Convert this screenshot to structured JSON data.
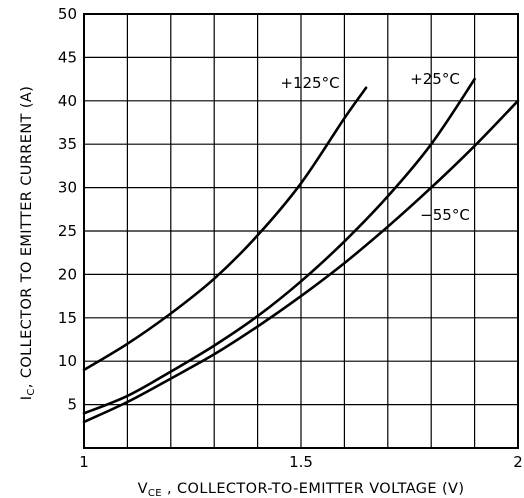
{
  "chart_data": {
    "type": "line",
    "xlabel": {
      "prefix": "V",
      "sub": "CE",
      "text": " , COLLECTOR-TO-EMITTER VOLTAGE (V)"
    },
    "ylabel": {
      "prefix": "I",
      "sub": "C",
      "text": ", COLLECTOR TO EMITTER CURRENT (A)"
    },
    "xlim": [
      1,
      2
    ],
    "ylim": [
      0,
      50
    ],
    "x_ticks": [
      1,
      1.5,
      2
    ],
    "x_tick_labels": [
      "1",
      "1.5",
      "2"
    ],
    "x_gridlines": [
      1,
      1.1,
      1.2,
      1.3,
      1.4,
      1.5,
      1.6,
      1.7,
      1.8,
      1.9,
      2
    ],
    "y_ticks": [
      5,
      10,
      15,
      20,
      25,
      30,
      35,
      40,
      45,
      50
    ],
    "y_tick_labels": [
      "5",
      "10",
      "15",
      "20",
      "25",
      "30",
      "35",
      "40",
      "45",
      "50"
    ],
    "grid": true,
    "series": [
      {
        "name": "+125°C",
        "x": [
          1.0,
          1.1,
          1.2,
          1.3,
          1.4,
          1.5,
          1.6,
          1.65
        ],
        "y": [
          9,
          12,
          15.5,
          19.5,
          24.5,
          30.5,
          38,
          41.5
        ]
      },
      {
        "name": "+25°C",
        "x": [
          1.0,
          1.1,
          1.2,
          1.3,
          1.4,
          1.5,
          1.6,
          1.7,
          1.8,
          1.9
        ],
        "y": [
          4,
          6,
          8.8,
          11.8,
          15.2,
          19.2,
          23.8,
          29,
          35,
          42.5
        ]
      },
      {
        "name": "-55°C",
        "x": [
          1.0,
          1.1,
          1.2,
          1.3,
          1.4,
          1.5,
          1.6,
          1.7,
          1.8,
          1.9,
          2.0
        ],
        "y": [
          3,
          5.3,
          8,
          10.8,
          14,
          17.5,
          21.3,
          25.5,
          30,
          34.8,
          40
        ]
      }
    ],
    "labels": [
      {
        "text": "+125°C",
        "series": 0
      },
      {
        "text": "+25°C",
        "series": 1
      },
      {
        "text": "−55°C",
        "series": 2
      }
    ]
  }
}
